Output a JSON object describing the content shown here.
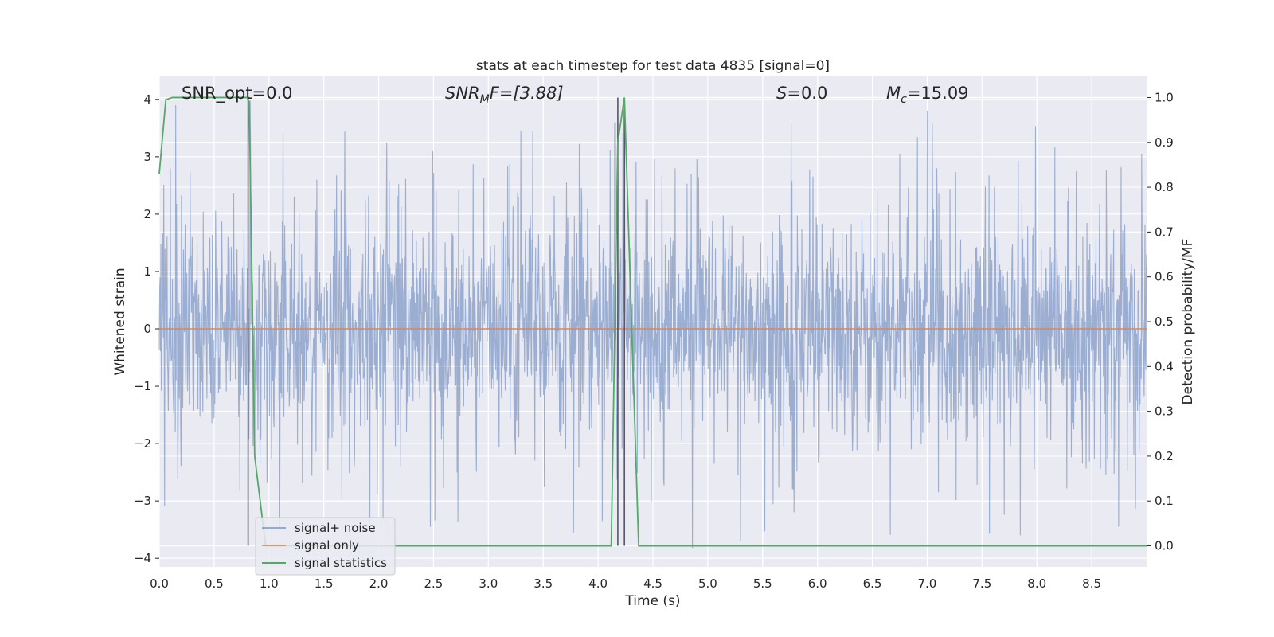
{
  "chart_data": {
    "type": "line",
    "title": "stats at each timestep for test data 4835 [signal=0]",
    "xlabel": "Time (s)",
    "ylabel": "Whitened strain",
    "ylabel_right": "Detection probability/MF",
    "xlim": [
      0.0,
      9.0
    ],
    "ylim": [
      -4.15,
      4.4
    ],
    "ylim_right": [
      -0.047,
      1.047
    ],
    "x_ticks": [
      "0.0",
      "0.5",
      "1.0",
      "1.5",
      "2.0",
      "2.5",
      "3.0",
      "3.5",
      "4.0",
      "4.5",
      "5.0",
      "5.5",
      "6.0",
      "6.5",
      "7.0",
      "7.5",
      "8.0",
      "8.5"
    ],
    "y_ticks": [
      "4",
      "3",
      "2",
      "1",
      "0",
      "−1",
      "−2",
      "−3",
      "−4"
    ],
    "y_ticks_right": [
      "1.0",
      "0.9",
      "0.8",
      "0.7",
      "0.6",
      "0.5",
      "0.4",
      "0.3",
      "0.2",
      "0.1",
      "0.0"
    ],
    "grid": true,
    "legend_placement": "lower-left",
    "annotations": {
      "snr_opt": "SNR_opt=0.0",
      "snr_mf_base": "SNR",
      "snr_mf_sub": "M",
      "snr_mf_rest": "F=[3.88]",
      "s_italic": "S",
      "s_rest": "=0.0",
      "mc_base": "M",
      "mc_sub": "c",
      "mc_rest": "=15.09"
    },
    "series": [
      {
        "name": "signal+ noise",
        "color": "#4c72b0",
        "style": "dense whitened noise, sampled",
        "x_range": [
          0.0,
          9.0
        ],
        "approx_peak_values": [
          {
            "x": 0.15,
            "y": 3.9
          },
          {
            "x": 0.83,
            "y": 3.98
          },
          {
            "x": 4.15,
            "y": 3.6
          },
          {
            "x": 4.24,
            "y": 3.72
          },
          {
            "x": 5.3,
            "y": -3.7
          },
          {
            "x": 7.0,
            "y": 3.8
          },
          {
            "x": 7.85,
            "y": -3.6
          }
        ]
      },
      {
        "name": "signal only",
        "color": "#dd8452",
        "x": [
          0.0,
          9.0
        ],
        "y": [
          0.0,
          0.0
        ]
      },
      {
        "name": "signal statistics",
        "color": "#55a868",
        "axis": "right",
        "x": [
          0.0,
          0.06,
          0.12,
          0.8,
          0.82,
          0.87,
          0.97,
          4.12,
          4.18,
          4.24,
          4.37,
          4.4,
          9.0
        ],
        "y": [
          0.83,
          0.995,
          1.0,
          1.0,
          0.99,
          0.2,
          0.0,
          0.0,
          0.9,
          1.0,
          0.0,
          0.0,
          0.0
        ]
      }
    ],
    "vertical_markers_x": [
      0.81,
      4.18,
      4.24
    ]
  }
}
